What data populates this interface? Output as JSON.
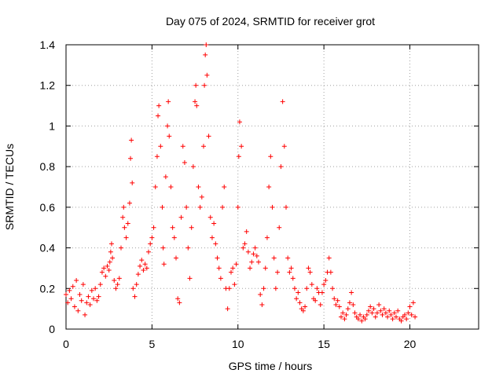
{
  "chart_data": {
    "type": "scatter",
    "title": "Day 075 of 2024, SRMTID for receiver grot",
    "xlabel": "GPS time / hours",
    "ylabel": "SRMTID / TECUs",
    "xlim": [
      0,
      24
    ],
    "ylim": [
      0,
      1.4
    ],
    "xticks": [
      0,
      5,
      10,
      15,
      20
    ],
    "xtick_labels": [
      "0",
      "5",
      "10",
      "15",
      "20"
    ],
    "yticks": [
      0,
      0.2,
      0.4,
      0.6,
      0.8,
      1.0,
      1.2,
      1.4
    ],
    "ytick_labels": [
      "0",
      "0.2",
      "0.4",
      "0.6",
      "0.8",
      "1",
      "1.2",
      "1.4"
    ],
    "grid": true,
    "marker": "plus",
    "color": "#ff0000",
    "series": [
      {
        "name": "SRMTID",
        "points": [
          [
            0.0,
            0.17
          ],
          [
            0.1,
            0.13
          ],
          [
            0.2,
            0.19
          ],
          [
            0.3,
            0.15
          ],
          [
            0.4,
            0.21
          ],
          [
            0.5,
            0.11
          ],
          [
            0.6,
            0.24
          ],
          [
            0.7,
            0.09
          ],
          [
            0.8,
            0.17
          ],
          [
            0.9,
            0.14
          ],
          [
            1.0,
            0.22
          ],
          [
            1.1,
            0.07
          ],
          [
            1.2,
            0.13
          ],
          [
            1.3,
            0.16
          ],
          [
            1.4,
            0.12
          ],
          [
            1.5,
            0.19
          ],
          [
            1.6,
            0.15
          ],
          [
            1.7,
            0.2
          ],
          [
            1.8,
            0.14
          ],
          [
            1.9,
            0.16
          ],
          [
            2.0,
            0.22
          ],
          [
            2.1,
            0.28
          ],
          [
            2.2,
            0.3
          ],
          [
            2.3,
            0.26
          ],
          [
            2.4,
            0.31
          ],
          [
            2.5,
            0.29
          ],
          [
            2.55,
            0.33
          ],
          [
            2.6,
            0.38
          ],
          [
            2.65,
            0.42
          ],
          [
            2.7,
            0.35
          ],
          [
            2.8,
            0.24
          ],
          [
            2.9,
            0.2
          ],
          [
            3.0,
            0.22
          ],
          [
            3.1,
            0.25
          ],
          [
            3.2,
            0.4
          ],
          [
            3.3,
            0.55
          ],
          [
            3.35,
            0.6
          ],
          [
            3.4,
            0.5
          ],
          [
            3.5,
            0.45
          ],
          [
            3.6,
            0.52
          ],
          [
            3.7,
            0.62
          ],
          [
            3.75,
            0.84
          ],
          [
            3.8,
            0.93
          ],
          [
            3.85,
            0.72
          ],
          [
            3.9,
            0.2
          ],
          [
            4.0,
            0.16
          ],
          [
            4.1,
            0.22
          ],
          [
            4.2,
            0.27
          ],
          [
            4.3,
            0.31
          ],
          [
            4.4,
            0.34
          ],
          [
            4.5,
            0.29
          ],
          [
            4.6,
            0.32
          ],
          [
            4.7,
            0.3
          ],
          [
            4.8,
            0.38
          ],
          [
            4.9,
            0.42
          ],
          [
            5.0,
            0.45
          ],
          [
            5.1,
            0.5
          ],
          [
            5.2,
            0.7
          ],
          [
            5.3,
            0.85
          ],
          [
            5.35,
            1.05
          ],
          [
            5.4,
            1.1
          ],
          [
            5.5,
            0.9
          ],
          [
            5.6,
            0.6
          ],
          [
            5.65,
            0.4
          ],
          [
            5.7,
            0.32
          ],
          [
            5.8,
            0.75
          ],
          [
            5.9,
            1.0
          ],
          [
            5.95,
            1.12
          ],
          [
            6.0,
            0.95
          ],
          [
            6.1,
            0.7
          ],
          [
            6.2,
            0.5
          ],
          [
            6.3,
            0.45
          ],
          [
            6.4,
            0.35
          ],
          [
            6.5,
            0.15
          ],
          [
            6.6,
            0.13
          ],
          [
            6.7,
            0.55
          ],
          [
            6.8,
            0.9
          ],
          [
            6.9,
            0.82
          ],
          [
            7.0,
            0.6
          ],
          [
            7.1,
            0.4
          ],
          [
            7.2,
            0.25
          ],
          [
            7.3,
            0.5
          ],
          [
            7.4,
            0.8
          ],
          [
            7.5,
            1.12
          ],
          [
            7.55,
            1.2
          ],
          [
            7.6,
            1.1
          ],
          [
            7.7,
            0.7
          ],
          [
            7.8,
            0.6
          ],
          [
            7.9,
            0.65
          ],
          [
            8.0,
            0.9
          ],
          [
            8.05,
            1.2
          ],
          [
            8.1,
            1.35
          ],
          [
            8.15,
            1.4
          ],
          [
            8.2,
            1.25
          ],
          [
            8.3,
            0.95
          ],
          [
            8.4,
            0.55
          ],
          [
            8.5,
            0.45
          ],
          [
            8.6,
            0.52
          ],
          [
            8.7,
            0.42
          ],
          [
            8.8,
            0.35
          ],
          [
            8.9,
            0.3
          ],
          [
            9.0,
            0.25
          ],
          [
            9.1,
            0.6
          ],
          [
            9.2,
            0.7
          ],
          [
            9.3,
            0.2
          ],
          [
            9.4,
            0.1
          ],
          [
            9.5,
            0.2
          ],
          [
            9.6,
            0.28
          ],
          [
            9.7,
            0.3
          ],
          [
            9.8,
            0.22
          ],
          [
            9.9,
            0.32
          ],
          [
            10.0,
            0.6
          ],
          [
            10.05,
            0.85
          ],
          [
            10.1,
            1.02
          ],
          [
            10.2,
            0.9
          ],
          [
            10.3,
            0.4
          ],
          [
            10.4,
            0.42
          ],
          [
            10.5,
            0.48
          ],
          [
            10.6,
            0.38
          ],
          [
            10.7,
            0.3
          ],
          [
            10.8,
            0.33
          ],
          [
            10.9,
            0.37
          ],
          [
            11.0,
            0.4
          ],
          [
            11.1,
            0.36
          ],
          [
            11.2,
            0.33
          ],
          [
            11.3,
            0.17
          ],
          [
            11.4,
            0.12
          ],
          [
            11.5,
            0.2
          ],
          [
            11.6,
            0.3
          ],
          [
            11.7,
            0.45
          ],
          [
            11.8,
            0.7
          ],
          [
            11.9,
            0.85
          ],
          [
            12.0,
            0.6
          ],
          [
            12.1,
            0.35
          ],
          [
            12.2,
            0.2
          ],
          [
            12.3,
            0.28
          ],
          [
            12.4,
            0.5
          ],
          [
            12.5,
            0.8
          ],
          [
            12.6,
            1.12
          ],
          [
            12.7,
            0.9
          ],
          [
            12.8,
            0.6
          ],
          [
            12.9,
            0.35
          ],
          [
            13.0,
            0.28
          ],
          [
            13.1,
            0.3
          ],
          [
            13.2,
            0.25
          ],
          [
            13.3,
            0.2
          ],
          [
            13.4,
            0.15
          ],
          [
            13.5,
            0.18
          ],
          [
            13.6,
            0.13
          ],
          [
            13.7,
            0.1
          ],
          [
            13.8,
            0.09
          ],
          [
            13.9,
            0.11
          ],
          [
            14.0,
            0.2
          ],
          [
            14.1,
            0.3
          ],
          [
            14.2,
            0.28
          ],
          [
            14.3,
            0.22
          ],
          [
            14.4,
            0.15
          ],
          [
            14.5,
            0.14
          ],
          [
            14.6,
            0.2
          ],
          [
            14.7,
            0.18
          ],
          [
            14.8,
            0.12
          ],
          [
            14.9,
            0.18
          ],
          [
            15.0,
            0.22
          ],
          [
            15.1,
            0.24
          ],
          [
            15.2,
            0.28
          ],
          [
            15.3,
            0.35
          ],
          [
            15.4,
            0.28
          ],
          [
            15.5,
            0.2
          ],
          [
            15.6,
            0.15
          ],
          [
            15.7,
            0.12
          ],
          [
            15.8,
            0.14
          ],
          [
            15.9,
            0.11
          ],
          [
            16.0,
            0.06
          ],
          [
            16.1,
            0.08
          ],
          [
            16.2,
            0.05
          ],
          [
            16.3,
            0.07
          ],
          [
            16.4,
            0.1
          ],
          [
            16.5,
            0.13
          ],
          [
            16.6,
            0.18
          ],
          [
            16.7,
            0.12
          ],
          [
            16.8,
            0.08
          ],
          [
            16.9,
            0.06
          ],
          [
            17.0,
            0.05
          ],
          [
            17.1,
            0.07
          ],
          [
            17.2,
            0.04
          ],
          [
            17.3,
            0.06
          ],
          [
            17.4,
            0.05
          ],
          [
            17.5,
            0.07
          ],
          [
            17.6,
            0.09
          ],
          [
            17.7,
            0.11
          ],
          [
            17.8,
            0.08
          ],
          [
            17.9,
            0.1
          ],
          [
            18.0,
            0.06
          ],
          [
            18.1,
            0.08
          ],
          [
            18.2,
            0.12
          ],
          [
            18.3,
            0.09
          ],
          [
            18.4,
            0.07
          ],
          [
            18.5,
            0.1
          ],
          [
            18.6,
            0.08
          ],
          [
            18.7,
            0.06
          ],
          [
            18.8,
            0.09
          ],
          [
            18.9,
            0.07
          ],
          [
            19.0,
            0.05
          ],
          [
            19.1,
            0.08
          ],
          [
            19.2,
            0.06
          ],
          [
            19.3,
            0.09
          ],
          [
            19.4,
            0.05
          ],
          [
            19.5,
            0.04
          ],
          [
            19.6,
            0.06
          ],
          [
            19.7,
            0.07
          ],
          [
            19.8,
            0.05
          ],
          [
            19.9,
            0.08
          ],
          [
            20.0,
            0.11
          ],
          [
            20.1,
            0.07
          ],
          [
            20.2,
            0.13
          ],
          [
            20.3,
            0.06
          ]
        ]
      }
    ]
  }
}
